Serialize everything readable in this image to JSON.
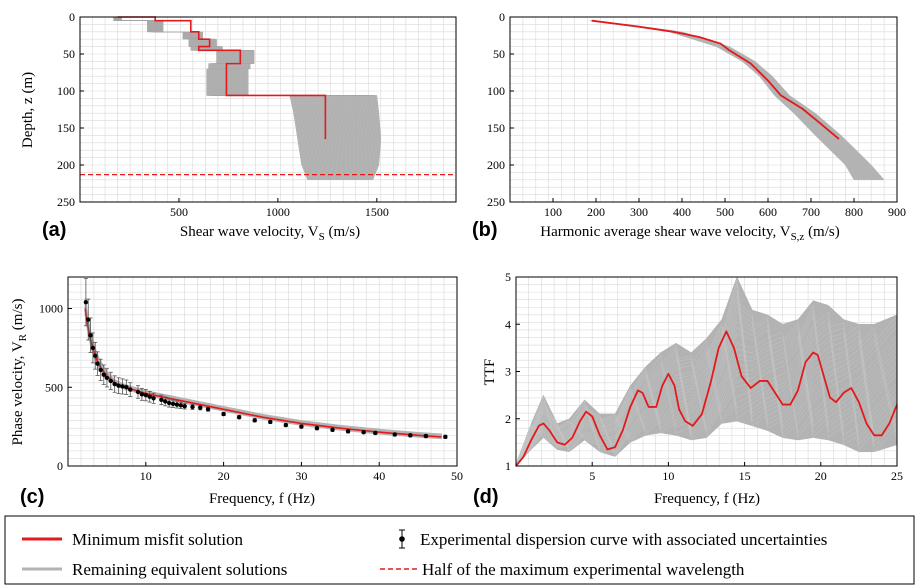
{
  "colors": {
    "best": "#e31a1c",
    "remaining": "#b3b3b3",
    "experimental": "#000000",
    "grid": "#d9d9d9"
  },
  "legend": {
    "best": "Minimum misfit solution",
    "experimental": "Experimental dispersion curve with associated uncertainties",
    "remaining": "Remaining equivalent solutions",
    "half_wavelength": "Half of the maximum experimental wavelength"
  },
  "chart_data": [
    {
      "panel": "(a)",
      "type": "line",
      "xlabel": "Shear wave velocity, V",
      "xlabel_sub": "S",
      "xlabel_tail": " (m/s)",
      "ylabel": "Depth, z (m)",
      "xlim": [
        0,
        1900
      ],
      "ylim": [
        250,
        0
      ],
      "xticks": [
        500,
        1000,
        1500
      ],
      "yticks": [
        0,
        50,
        100,
        150,
        200,
        250
      ],
      "grid": true,
      "best_profile": {
        "x": [
          190,
          380,
          380,
          560,
          560,
          600,
          600,
          655,
          655,
          600,
          600,
          810,
          810,
          740,
          740,
          1240,
          1240
        ],
        "y": [
          0,
          0,
          5,
          5,
          20,
          20,
          30,
          30,
          40,
          40,
          45,
          45,
          63,
          63,
          106,
          106,
          165
        ]
      },
      "remaining_band": {
        "depth": [
          0,
          5,
          5,
          20,
          20,
          30,
          30,
          40,
          40,
          45,
          45,
          63,
          63,
          70,
          70,
          106,
          106,
          130,
          165,
          200,
          220
        ],
        "v_min": [
          170,
          170,
          340,
          340,
          520,
          520,
          550,
          550,
          560,
          560,
          690,
          690,
          650,
          650,
          640,
          640,
          1060,
          1080,
          1100,
          1120,
          1150
        ],
        "v_max": [
          210,
          210,
          420,
          420,
          620,
          620,
          690,
          690,
          720,
          720,
          880,
          880,
          860,
          860,
          850,
          850,
          1500,
          1510,
          1520,
          1510,
          1480
        ]
      },
      "half_wavelength_depth": 213
    },
    {
      "panel": "(b)",
      "type": "line",
      "xlabel": "Harmonic average shear wave velocity, V",
      "xlabel_sub": "S,z",
      "xlabel_tail": " (m/s)",
      "ylabel": "",
      "xlim": [
        0,
        900
      ],
      "ylim": [
        250,
        0
      ],
      "xticks": [
        100,
        200,
        300,
        400,
        500,
        600,
        700,
        800,
        900
      ],
      "yticks": [
        0,
        50,
        100,
        150,
        200,
        250
      ],
      "grid": true,
      "best_curve": {
        "x": [
          190,
          300,
          380,
          440,
          490,
          510,
          560,
          600,
          630,
          680,
          720,
          765
        ],
        "y": [
          5,
          13,
          20,
          27,
          36,
          45,
          63,
          86,
          106,
          124,
          143,
          165
        ]
      },
      "remaining_band": {
        "depth": [
          5,
          20,
          40,
          60,
          80,
          106,
          130,
          160,
          200,
          220
        ],
        "x_min": [
          185,
          370,
          480,
          540,
          580,
          615,
          660,
          710,
          780,
          800
        ],
        "x_max": [
          200,
          400,
          510,
          570,
          610,
          650,
          710,
          770,
          840,
          870
        ]
      }
    },
    {
      "panel": "(c)",
      "type": "line",
      "xlabel": "Frequency, f (Hz)",
      "ylabel": "Phase velocity, V",
      "ylabel_sub": "R",
      "ylabel_tail": " (m/s)",
      "xlim": [
        0,
        50
      ],
      "ylim": [
        0,
        1200
      ],
      "xticks": [
        10,
        20,
        30,
        40,
        50
      ],
      "yticks": [
        0,
        500,
        1000
      ],
      "grid": true,
      "best_curve": {
        "x": [
          2.2,
          2.5,
          3,
          3.5,
          4,
          5,
          6,
          7,
          8,
          10,
          12,
          15,
          20,
          25,
          30,
          35,
          40,
          45,
          48
        ],
        "y": [
          1000,
          900,
          780,
          700,
          640,
          570,
          530,
          505,
          490,
          460,
          440,
          410,
          360,
          310,
          270,
          240,
          215,
          195,
          185
        ]
      },
      "experimental": {
        "x": [
          2.3,
          2.6,
          2.9,
          3.2,
          3.5,
          3.8,
          4.2,
          4.6,
          5,
          5.5,
          6,
          6.5,
          7,
          7.5,
          8,
          9,
          9.5,
          10,
          10.5,
          11,
          12,
          12.5,
          13,
          13.5,
          14,
          14.5,
          15,
          16,
          17,
          18,
          20,
          22,
          24,
          26,
          28,
          30,
          32,
          34,
          36,
          38,
          39.5,
          42,
          44,
          46,
          48.5
        ],
        "y": [
          1040,
          930,
          830,
          750,
          700,
          650,
          610,
          580,
          560,
          540,
          520,
          510,
          505,
          500,
          485,
          470,
          455,
          450,
          440,
          430,
          420,
          410,
          400,
          395,
          390,
          385,
          380,
          375,
          370,
          360,
          330,
          310,
          290,
          280,
          260,
          250,
          240,
          230,
          220,
          215,
          210,
          200,
          195,
          190,
          185
        ],
        "err": [
          150,
          130,
          110,
          95,
          85,
          75,
          68,
          62,
          58,
          55,
          52,
          50,
          48,
          46,
          44,
          40,
          38,
          36,
          34,
          32,
          30,
          28,
          26,
          24,
          22,
          20,
          18,
          16,
          14,
          12,
          10,
          10,
          10,
          10,
          10,
          10,
          10,
          10,
          10,
          10,
          10,
          10,
          10,
          10,
          10
        ]
      }
    },
    {
      "panel": "(d)",
      "type": "line",
      "xlabel": "Frequency, f (Hz)",
      "ylabel": "TTF",
      "xlim": [
        0,
        25
      ],
      "ylim": [
        1,
        5
      ],
      "xticks": [
        5,
        10,
        15,
        20,
        25
      ],
      "yticks": [
        1,
        2,
        3,
        4,
        5
      ],
      "grid": true,
      "best_curve": {
        "x": [
          0,
          0.5,
          1,
          1.5,
          1.8,
          2.2,
          2.7,
          3.2,
          3.7,
          4.2,
          4.6,
          5,
          5.5,
          6,
          6.5,
          7,
          7.5,
          8,
          8.3,
          8.7,
          9.2,
          9.6,
          10,
          10.4,
          10.7,
          11.1,
          11.6,
          12.2,
          12.8,
          13.3,
          13.8,
          14.3,
          14.8,
          15.4,
          16,
          16.5,
          17,
          17.5,
          18,
          18.5,
          19,
          19.5,
          19.8,
          20.2,
          20.6,
          21,
          21.5,
          22,
          22.5,
          23,
          23.5,
          24,
          24.5,
          25
        ],
        "y": [
          1.0,
          1.2,
          1.55,
          1.85,
          1.9,
          1.75,
          1.5,
          1.45,
          1.6,
          1.95,
          2.15,
          2.05,
          1.65,
          1.35,
          1.4,
          1.75,
          2.25,
          2.6,
          2.55,
          2.25,
          2.25,
          2.7,
          2.95,
          2.7,
          2.2,
          1.95,
          1.85,
          2.1,
          2.8,
          3.5,
          3.85,
          3.5,
          2.9,
          2.65,
          2.8,
          2.8,
          2.55,
          2.3,
          2.3,
          2.6,
          3.2,
          3.4,
          3.35,
          2.9,
          2.45,
          2.35,
          2.55,
          2.65,
          2.35,
          1.9,
          1.65,
          1.65,
          1.9,
          2.3
        ]
      },
      "remaining_band": {
        "x": [
          0,
          1,
          1.8,
          2.7,
          3.5,
          4.5,
          5.5,
          6.5,
          7.5,
          8.5,
          9.5,
          10.5,
          11.5,
          12.5,
          13.5,
          14.5,
          15.5,
          16.5,
          17.5,
          18.5,
          19.5,
          20.5,
          21.5,
          22.5,
          23.5,
          25
        ],
        "y_min": [
          1.0,
          1.35,
          1.6,
          1.35,
          1.3,
          1.55,
          1.3,
          1.2,
          1.5,
          1.65,
          1.7,
          1.65,
          1.55,
          1.6,
          1.9,
          1.95,
          1.85,
          1.75,
          1.6,
          1.55,
          1.6,
          1.55,
          1.45,
          1.3,
          1.3,
          1.45
        ],
        "y_max": [
          1.05,
          1.9,
          2.5,
          1.9,
          2.0,
          2.4,
          2.1,
          2.1,
          2.7,
          3.1,
          3.4,
          3.6,
          3.4,
          3.7,
          4.1,
          5.0,
          4.3,
          4.2,
          4.0,
          4.1,
          4.5,
          4.4,
          4.1,
          4.0,
          4.0,
          4.2
        ]
      }
    }
  ]
}
